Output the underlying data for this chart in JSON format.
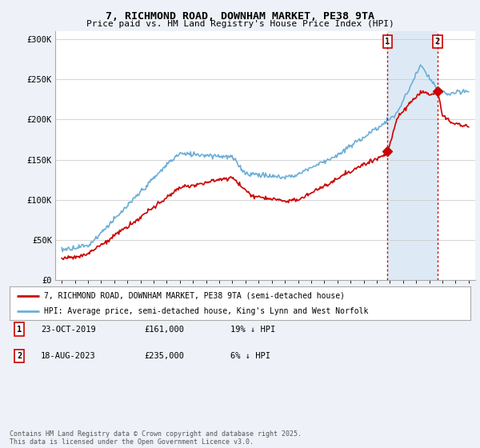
{
  "title_line1": "7, RICHMOND ROAD, DOWNHAM MARKET, PE38 9TA",
  "title_line2": "Price paid vs. HM Land Registry's House Price Index (HPI)",
  "ylim": [
    0,
    310000
  ],
  "yticks": [
    0,
    50000,
    100000,
    150000,
    200000,
    250000,
    300000
  ],
  "ytick_labels": [
    "£0",
    "£50K",
    "£100K",
    "£150K",
    "£200K",
    "£250K",
    "£300K"
  ],
  "hpi_color": "#6dafd7",
  "price_color": "#cc0000",
  "background_color": "#eef2f8",
  "plot_bg_color": "#ffffff",
  "shade_color": "#ddeaf5",
  "vline_color": "#cc0000",
  "sale1_year": 2019.81,
  "sale1_price": 161000,
  "sale1_label": "1",
  "sale2_year": 2023.63,
  "sale2_price": 235000,
  "sale2_label": "2",
  "legend_line1": "7, RICHMOND ROAD, DOWNHAM MARKET, PE38 9TA (semi-detached house)",
  "legend_line2": "HPI: Average price, semi-detached house, King's Lynn and West Norfolk",
  "footnote": "Contains HM Land Registry data © Crown copyright and database right 2025.\nThis data is licensed under the Open Government Licence v3.0.",
  "table_row1": [
    "1",
    "23-OCT-2019",
    "£161,000",
    "19% ↓ HPI"
  ],
  "table_row2": [
    "2",
    "18-AUG-2023",
    "£235,000",
    "6% ↓ HPI"
  ],
  "xmin": 1994.5,
  "xmax": 2026.5,
  "xtick_start": 1995,
  "xtick_end": 2026
}
